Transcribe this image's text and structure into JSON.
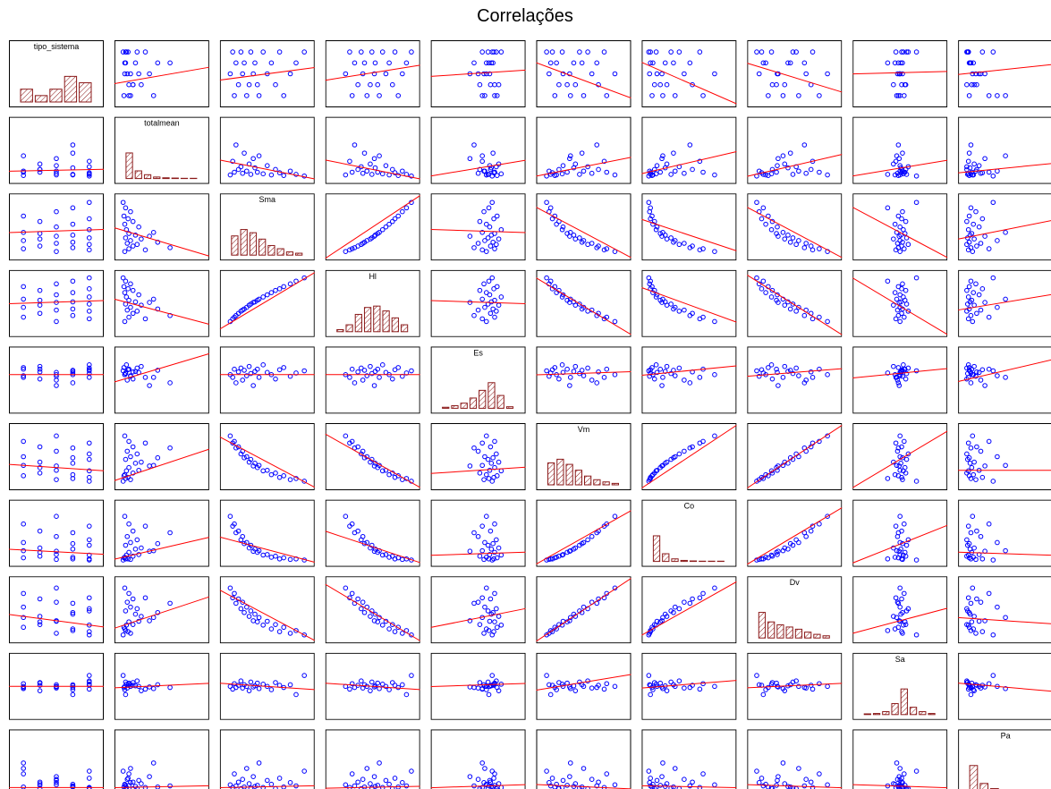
{
  "chart_data": {
    "type": "scatter_matrix",
    "title": "Correlações",
    "point_color": "#0000ff",
    "fit_color": "#ff0000",
    "hist_color": "#8b1a1a",
    "variables": [
      {
        "name": "tipo_sistema",
        "lim": [
          0.5,
          5.5
        ],
        "hist": [
          2,
          1,
          2,
          4,
          3
        ],
        "values": [
          3,
          5,
          1,
          4,
          2,
          5,
          3,
          4,
          1,
          2,
          5,
          3,
          4,
          2,
          1,
          5,
          3,
          4,
          2,
          5,
          1,
          3,
          4,
          5
        ]
      },
      {
        "name": "totalmean",
        "lim": [
          0,
          1
        ],
        "hist": [
          10,
          3,
          1.5,
          0.6,
          0.3,
          0.2,
          0.1,
          0.1
        ],
        "values": [
          0.05,
          0.3,
          0.1,
          0.6,
          0.15,
          0.2,
          0.08,
          0.45,
          0.12,
          0.25,
          0.06,
          0.35,
          0.18,
          0.1,
          0.4,
          0.07,
          0.22,
          0.05,
          0.15,
          0.09,
          0.04,
          0.12,
          0.06,
          0.03
        ]
      },
      {
        "name": "Sma",
        "lim": [
          0,
          1
        ],
        "hist": [
          3,
          4,
          3.5,
          2.5,
          1.5,
          1,
          0.5,
          0.3
        ],
        "values": [
          0.05,
          0.08,
          0.1,
          0.12,
          0.15,
          0.18,
          0.2,
          0.22,
          0.25,
          0.28,
          0.3,
          0.33,
          0.35,
          0.38,
          0.4,
          0.45,
          0.5,
          0.55,
          0.6,
          0.65,
          0.7,
          0.78,
          0.85,
          0.95
        ]
      },
      {
        "name": "Hl",
        "lim": [
          0,
          1
        ],
        "hist": [
          0.3,
          1,
          2.5,
          3.5,
          3.7,
          3,
          2,
          1
        ],
        "values": [
          0.17,
          0.22,
          0.25,
          0.28,
          0.32,
          0.36,
          0.38,
          0.4,
          0.43,
          0.47,
          0.49,
          0.52,
          0.53,
          0.56,
          0.58,
          0.62,
          0.66,
          0.7,
          0.74,
          0.77,
          0.81,
          0.86,
          0.91,
          0.97
        ]
      },
      {
        "name": "Es",
        "lim": [
          0,
          1
        ],
        "hist": [
          0.2,
          0.5,
          1,
          2,
          3.5,
          5,
          2.5,
          0.3
        ],
        "values": [
          0.6,
          0.55,
          0.7,
          0.45,
          0.65,
          0.72,
          0.5,
          0.68,
          0.58,
          0.75,
          0.62,
          0.4,
          0.66,
          0.7,
          0.55,
          0.78,
          0.64,
          0.6,
          0.52,
          0.69,
          0.73,
          0.57,
          0.63,
          0.67
        ]
      },
      {
        "name": "Vm",
        "lim": [
          0,
          1
        ],
        "hist": [
          3,
          3.5,
          2.8,
          2,
          1.2,
          0.7,
          0.4,
          0.2
        ],
        "values": [
          0.88,
          0.75,
          0.78,
          0.66,
          0.68,
          0.55,
          0.6,
          0.48,
          0.5,
          0.4,
          0.45,
          0.33,
          0.38,
          0.3,
          0.34,
          0.24,
          0.25,
          0.17,
          0.2,
          0.12,
          0.15,
          0.08,
          0.1,
          0.05
        ]
      },
      {
        "name": "Co",
        "lim": [
          0,
          1
        ],
        "hist": [
          10,
          3,
          1,
          0.4,
          0.2,
          0.1,
          0.1,
          0.1
        ],
        "values": [
          0.81,
          0.63,
          0.67,
          0.51,
          0.54,
          0.38,
          0.44,
          0.31,
          0.33,
          0.23,
          0.28,
          0.17,
          0.21,
          0.15,
          0.18,
          0.1,
          0.11,
          0.06,
          0.08,
          0.03,
          0.05,
          0.02,
          0.03,
          0.01
        ]
      },
      {
        "name": "Dv",
        "lim": [
          0,
          1
        ],
        "hist": [
          3.5,
          2.2,
          1.8,
          1.5,
          1.2,
          0.8,
          0.5,
          0.3
        ],
        "values": [
          0.9,
          0.72,
          0.8,
          0.62,
          0.7,
          0.52,
          0.64,
          0.45,
          0.55,
          0.38,
          0.48,
          0.3,
          0.42,
          0.28,
          0.36,
          0.22,
          0.29,
          0.15,
          0.23,
          0.1,
          0.18,
          0.07,
          0.12,
          0.04
        ]
      },
      {
        "name": "Sa",
        "lim": [
          0,
          1
        ],
        "hist": [
          0.2,
          0.3,
          0.8,
          3,
          7,
          2,
          0.8,
          0.3
        ],
        "values": [
          0.5,
          0.45,
          0.55,
          0.48,
          0.52,
          0.6,
          0.47,
          0.53,
          0.5,
          0.42,
          0.58,
          0.49,
          0.51,
          0.56,
          0.46,
          0.54,
          0.5,
          0.44,
          0.57,
          0.52,
          0.48,
          0.53,
          0.35,
          0.7
        ]
      },
      {
        "name": "Pa",
        "lim": [
          0,
          1
        ],
        "hist": [
          10,
          3,
          1,
          0.5,
          0.3,
          0.2,
          0.1
        ],
        "values": [
          0.1,
          0.05,
          0.3,
          0.08,
          0.15,
          0.03,
          0.2,
          0.06,
          0.4,
          0.12,
          0.04,
          0.25,
          0.07,
          0.09,
          0.5,
          0.05,
          0.18,
          0.11,
          0.03,
          0.22,
          0.06,
          0.14,
          0.08,
          0.35
        ]
      }
    ],
    "fits": [
      [
        null,
        [
          2.2,
          3.5
        ],
        [
          2.5,
          3.5
        ],
        [
          2.5,
          3.7
        ],
        [
          2.8,
          3.3
        ],
        [
          3.8,
          1
        ],
        [
          3.8,
          0.5
        ],
        [
          3.8,
          1.5
        ],
        [
          3,
          3.2
        ],
        [
          3,
          3.8
        ]
      ],
      [
        [
          0.12,
          0.15
        ],
        null,
        [
          0.3,
          0
        ],
        [
          0.3,
          0
        ],
        [
          0.05,
          0.3
        ],
        [
          0.05,
          0.35
        ],
        [
          0.1,
          0.45
        ],
        [
          0.05,
          0.4
        ],
        [
          0.05,
          0.3
        ],
        [
          0.1,
          0.25
        ]
      ],
      [
        [
          0.4,
          0.45
        ],
        [
          0.45,
          0
        ],
        null,
        [
          0,
          1
        ],
        [
          0.45,
          0.4
        ],
        [
          0.8,
          0
        ],
        [
          0.6,
          0.1
        ],
        [
          0.8,
          0
        ],
        [
          0.8,
          0
        ],
        [
          0.3,
          0.6
        ]
      ],
      [
        [
          0.5,
          0.55
        ],
        [
          0.55,
          0.15
        ],
        [
          0.1,
          1
        ],
        null,
        [
          0.55,
          0.5
        ],
        [
          0.9,
          0
        ],
        [
          0.75,
          0.2
        ],
        [
          0.95,
          0
        ],
        [
          0.9,
          0
        ],
        [
          0.4,
          0.65
        ]
      ],
      [
        [
          0.6,
          0.6
        ],
        [
          0.5,
          0.95
        ],
        [
          0.6,
          0.6
        ],
        [
          0.6,
          0.6
        ],
        null,
        [
          0.6,
          0.65
        ],
        [
          0.6,
          0.75
        ],
        [
          0.58,
          0.7
        ],
        [
          0.55,
          0.7
        ],
        [
          0.5,
          0.85
        ]
      ],
      [
        [
          0.35,
          0.25
        ],
        [
          0.1,
          0.6
        ],
        [
          0.8,
          0
        ],
        [
          0.85,
          0
        ],
        [
          0.2,
          0.3
        ],
        null,
        [
          0,
          1
        ],
        [
          0,
          1
        ],
        [
          0,
          0.9
        ],
        [
          0.25,
          0.25
        ]
      ],
      [
        [
          0.2,
          0.12
        ],
        [
          0.05,
          0.4
        ],
        [
          0.4,
          0
        ],
        [
          0.5,
          0
        ],
        [
          0.1,
          0.15
        ],
        [
          0,
          0.85
        ],
        null,
        [
          0,
          0.9
        ],
        [
          0,
          0.6
        ],
        [
          0.15,
          0.1
        ]
      ],
      [
        [
          0.4,
          0.2
        ],
        [
          0.2,
          0.7
        ],
        [
          0.8,
          0
        ],
        [
          0.9,
          0
        ],
        [
          0.2,
          0.5
        ],
        [
          0,
          1
        ],
        [
          0.1,
          0.95
        ],
        null,
        [
          0.1,
          0.5
        ],
        [
          0.35,
          0.25
        ]
      ],
      [
        [
          0.5,
          0.5
        ],
        [
          0.48,
          0.55
        ],
        [
          0.55,
          0.45
        ],
        [
          0.55,
          0.45
        ],
        [
          0.5,
          0.55
        ],
        [
          0.45,
          0.7
        ],
        [
          0.48,
          0.6
        ],
        [
          0.48,
          0.55
        ],
        null,
        [
          0.55,
          0.42
        ]
      ],
      [
        [
          0.05,
          0.05
        ],
        [
          0.05,
          0.08
        ],
        [
          0.05,
          0.08
        ],
        [
          0.04,
          0.07
        ],
        [
          0.05,
          0.1
        ],
        [
          0.1,
          0.03
        ],
        [
          0.08,
          0.05
        ],
        [
          0.1,
          0.05
        ],
        [
          0.1,
          0.05
        ],
        null
      ]
    ]
  }
}
